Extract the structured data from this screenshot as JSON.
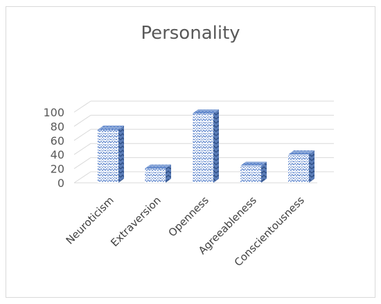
{
  "chart_data": {
    "type": "bar",
    "title": "Personality",
    "categories": [
      "Neuroticism",
      "Extraversion",
      "Openness",
      "Agreeableness",
      "Conscientousness"
    ],
    "values": [
      75,
      20,
      98,
      24,
      40
    ],
    "ylim": [
      0,
      100
    ],
    "yticks": [
      "0",
      "20",
      "40",
      "60",
      "80",
      "100"
    ],
    "grid": true,
    "style": "3d-column",
    "colors": {
      "pattern_dark": "#4472c4",
      "pattern_light": "#ffffff",
      "side": "#3a5f9e",
      "grid": "#d9d9d9"
    }
  }
}
